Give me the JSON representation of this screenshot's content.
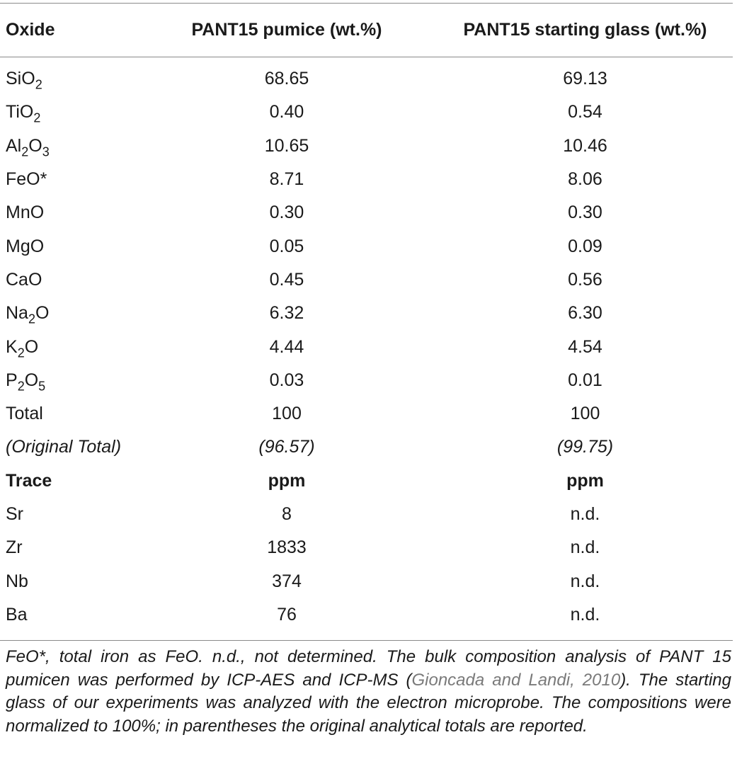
{
  "table": {
    "headers": [
      "Oxide",
      "PANT15 pumice (wt.%)",
      "PANT15 starting glass (wt.%)"
    ],
    "oxides": [
      {
        "name": "SiO",
        "sub": "2",
        "after": "",
        "pumice": "68.65",
        "glass": "69.13"
      },
      {
        "name": "TiO",
        "sub": "2",
        "after": "",
        "pumice": "0.40",
        "glass": "0.54"
      },
      {
        "name": "Al",
        "sub": "2",
        "after": "O",
        "sub2": "3",
        "pumice": "10.65",
        "glass": "10.46"
      },
      {
        "name": "FeO*",
        "sub": "",
        "after": "",
        "pumice": "8.71",
        "glass": "8.06"
      },
      {
        "name": "MnO",
        "sub": "",
        "after": "",
        "pumice": "0.30",
        "glass": "0.30"
      },
      {
        "name": "MgO",
        "sub": "",
        "after": "",
        "pumice": "0.05",
        "glass": "0.09"
      },
      {
        "name": "CaO",
        "sub": "",
        "after": "",
        "pumice": "0.45",
        "glass": "0.56"
      },
      {
        "name": "Na",
        "sub": "2",
        "after": "O",
        "pumice": "6.32",
        "glass": "6.30"
      },
      {
        "name": "K",
        "sub": "2",
        "after": "O",
        "pumice": "4.44",
        "glass": "4.54"
      },
      {
        "name": "P",
        "sub": "2",
        "after": "O",
        "sub2": "5",
        "pumice": "0.03",
        "glass": "0.01"
      }
    ],
    "total": {
      "label": "Total",
      "pumice": "100",
      "glass": "100"
    },
    "original_total": {
      "label": "(Original Total)",
      "pumice": "(96.57)",
      "glass": "(99.75)"
    },
    "trace_header": {
      "label": "Trace",
      "pumice": "ppm",
      "glass": "ppm"
    },
    "trace": [
      {
        "name": "Sr",
        "pumice": "8",
        "glass": "n.d."
      },
      {
        "name": "Zr",
        "pumice": "1833",
        "glass": "n.d."
      },
      {
        "name": "Nb",
        "pumice": "374",
        "glass": "n.d."
      },
      {
        "name": "Ba",
        "pumice": "76",
        "glass": "n.d."
      }
    ]
  },
  "footnote": {
    "part1": "FeO*, total iron as FeO. n.d., not determined. The bulk composition analysis of PANT 15 pumicen was performed by ICP-AES and ICP-MS (",
    "citation": "Gioncada and Landi, 2010",
    "part2": "). The starting glass of our experiments was analyzed with the electron microprobe. The compositions were normalized to 100%; in parentheses the original analytical totals are reported."
  }
}
